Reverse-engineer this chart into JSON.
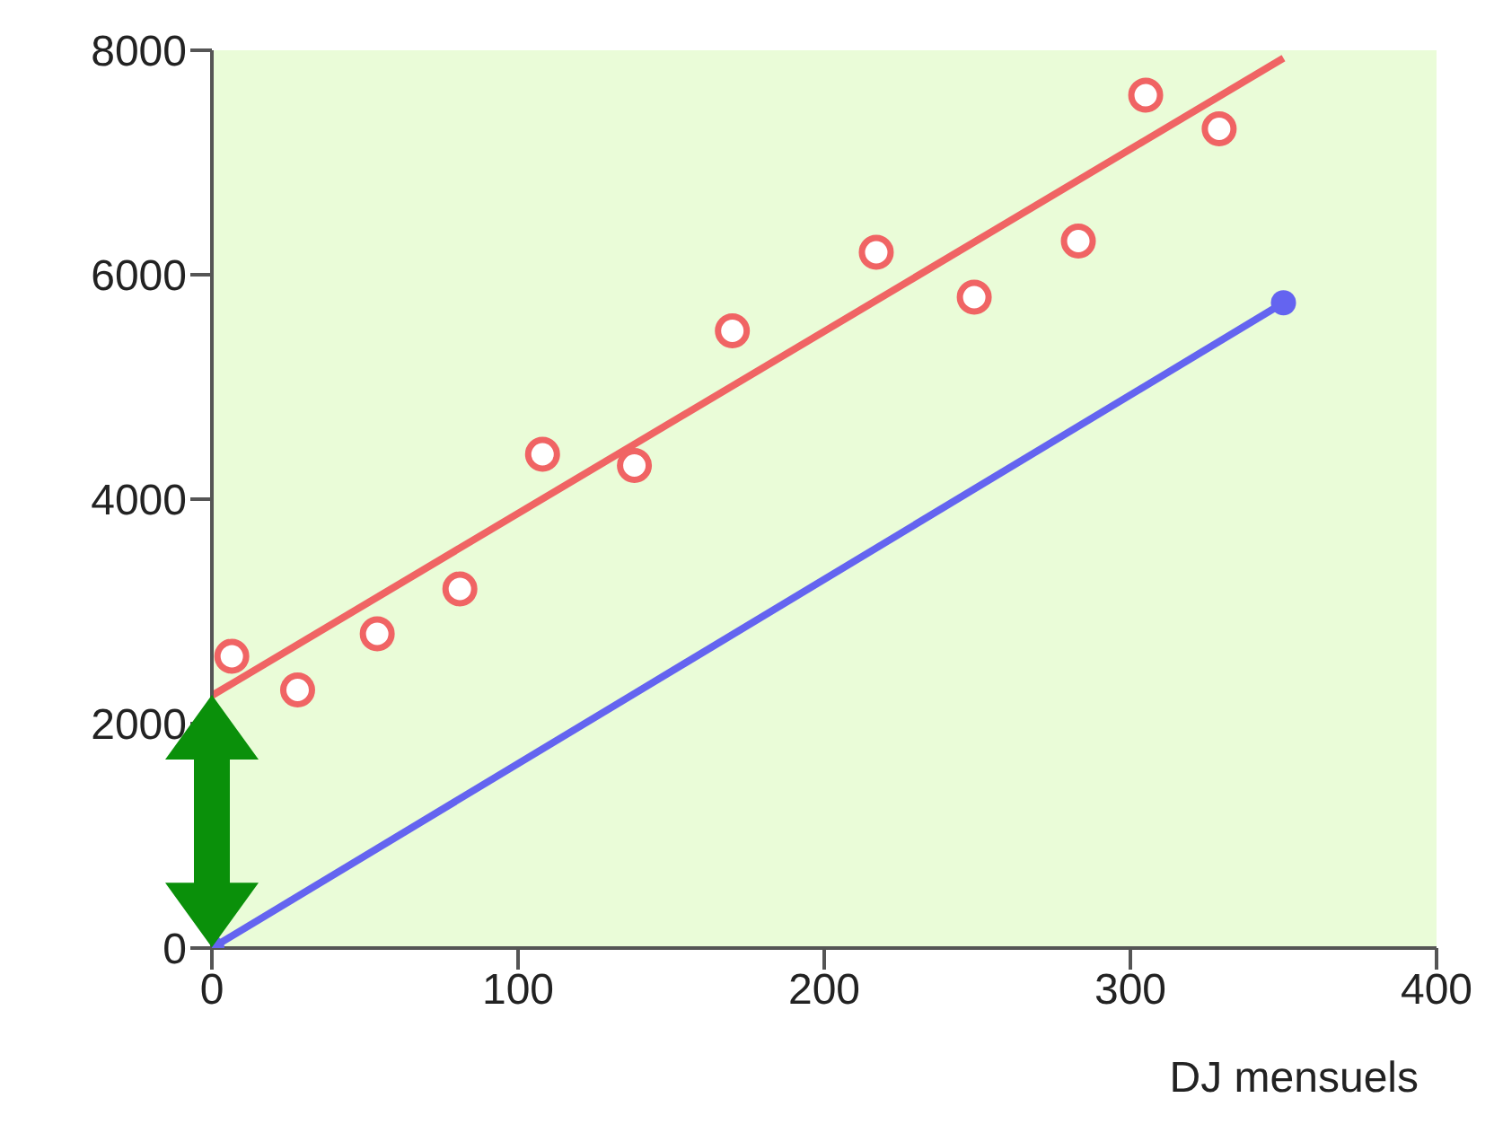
{
  "chart_data": {
    "type": "scatter",
    "xlabel": "DJ mensuels",
    "xlim": [
      0,
      400
    ],
    "xticks": [
      0,
      100,
      200,
      300,
      400
    ],
    "ylim": [
      0,
      8000
    ],
    "yticks": [
      0,
      2000,
      4000,
      6000,
      8000
    ],
    "series": [
      {
        "color": "#f06464",
        "marker": "circle",
        "x": [
          6.5,
          28,
          54,
          81,
          108,
          138,
          170,
          217,
          249,
          283,
          305,
          329
        ],
        "values": [
          2600,
          2300,
          2800,
          3200,
          4400,
          4300,
          5500,
          6200,
          5800,
          6300,
          7600,
          7300
        ]
      },
      {
        "type": "line",
        "color": "#f06464",
        "marker": "none",
        "x": [
          0,
          350
        ],
        "values": [
          2250,
          7930
        ]
      },
      {
        "type": "line",
        "color": "#6464f0",
        "marker": "circle",
        "x": [
          0,
          350
        ],
        "values": [
          0,
          5750
        ]
      }
    ]
  }
}
